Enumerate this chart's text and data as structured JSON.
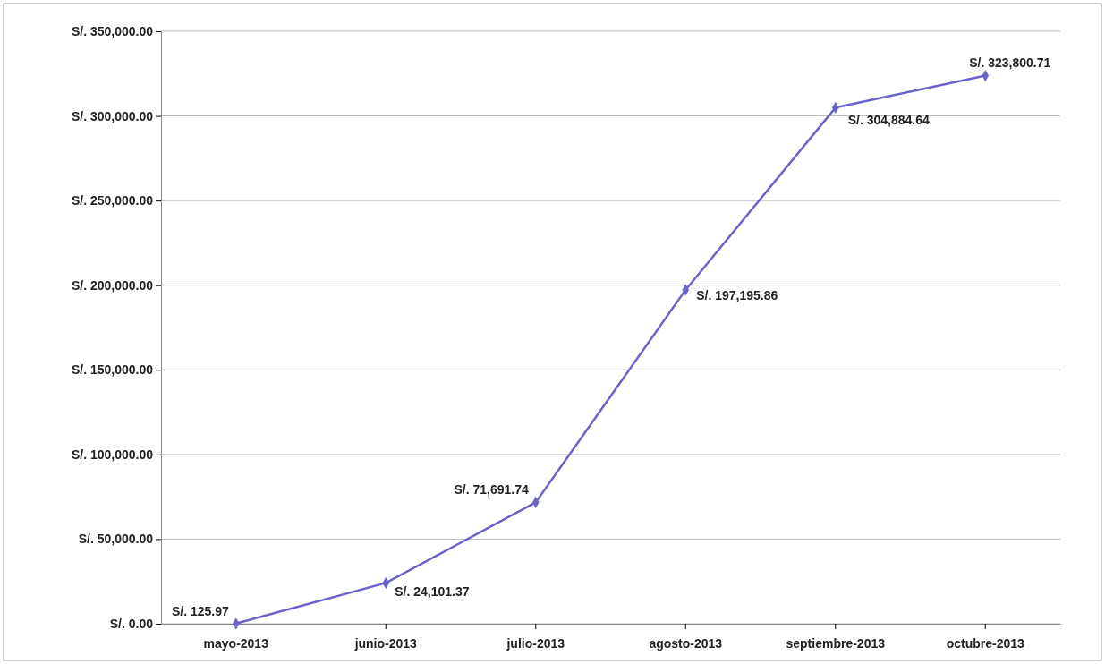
{
  "chart_data": {
    "type": "line",
    "categories": [
      "mayo-2013",
      "junio-2013",
      "julio-2013",
      "agosto-2013",
      "septiembre-2013",
      "octubre-2013"
    ],
    "series": [
      {
        "color": "#6a63c9",
        "values": [
          125.97,
          24101.37,
          71691.74,
          197195.86,
          304884.64,
          323800.71
        ],
        "value_labels": [
          "S/. 125.97",
          "S/. 24,101.37",
          "S/. 71,691.74",
          "S/. 197,195.86",
          "S/. 304,884.64",
          "S/. 323,800.71"
        ]
      }
    ],
    "ylim": [
      0,
      350000
    ],
    "yticks": [
      {
        "value": 0,
        "label": "S/. 0.00"
      },
      {
        "value": 50000,
        "label": "S/. 50,000.00"
      },
      {
        "value": 100000,
        "label": "S/. 100,000.00"
      },
      {
        "value": 150000,
        "label": "S/. 150,000.00"
      },
      {
        "value": 200000,
        "label": "S/. 200,000.00"
      },
      {
        "value": 250000,
        "label": "S/. 250,000.00"
      },
      {
        "value": 300000,
        "label": "S/. 300,000.00"
      },
      {
        "value": 350000,
        "label": "S/. 350,000.00"
      }
    ],
    "grid": "y",
    "marker": "diamond",
    "line_style": "solid"
  }
}
